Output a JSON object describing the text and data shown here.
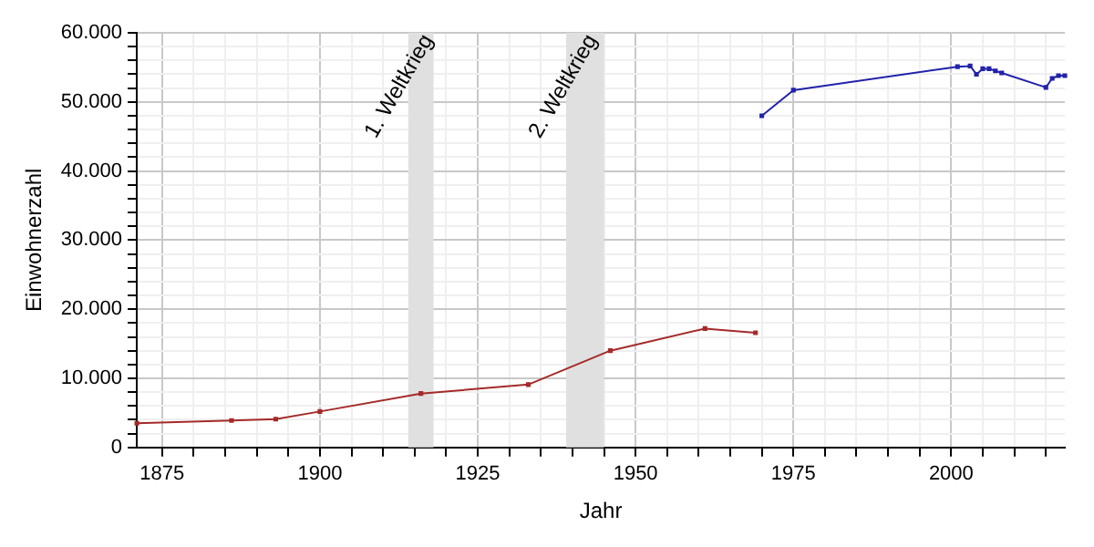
{
  "chart_data": {
    "type": "line",
    "xlabel": "Jahr",
    "ylabel": "Einwohnerzahl",
    "xlim": [
      1871,
      2018
    ],
    "xticks": [
      {
        "value": 1875,
        "label": "1875"
      },
      {
        "value": 1880,
        "label": null
      },
      {
        "value": 1885,
        "label": null
      },
      {
        "value": 1890,
        "label": null
      },
      {
        "value": 1895,
        "label": null
      },
      {
        "value": 1900,
        "label": "1900"
      },
      {
        "value": 1905,
        "label": null
      },
      {
        "value": 1910,
        "label": null
      },
      {
        "value": 1915,
        "label": null
      },
      {
        "value": 1920,
        "label": null
      },
      {
        "value": 1925,
        "label": "1925"
      },
      {
        "value": 1930,
        "label": null
      },
      {
        "value": 1935,
        "label": null
      },
      {
        "value": 1940,
        "label": null
      },
      {
        "value": 1945,
        "label": null
      },
      {
        "value": 1950,
        "label": "1950"
      },
      {
        "value": 1955,
        "label": null
      },
      {
        "value": 1960,
        "label": null
      },
      {
        "value": 1965,
        "label": null
      },
      {
        "value": 1970,
        "label": null
      },
      {
        "value": 1975,
        "label": "1975"
      },
      {
        "value": 1980,
        "label": null
      },
      {
        "value": 1985,
        "label": null
      },
      {
        "value": 1990,
        "label": null
      },
      {
        "value": 1995,
        "label": null
      },
      {
        "value": 2000,
        "label": "2000"
      },
      {
        "value": 2005,
        "label": null
      },
      {
        "value": 2010,
        "label": null
      },
      {
        "value": 2015,
        "label": null
      }
    ],
    "ylim": [
      0,
      60000
    ],
    "yticks": [
      {
        "value": 0,
        "label": "0"
      },
      {
        "value": 2000,
        "label": null
      },
      {
        "value": 4000,
        "label": null
      },
      {
        "value": 6000,
        "label": null
      },
      {
        "value": 8000,
        "label": null
      },
      {
        "value": 10000,
        "label": "10.000"
      },
      {
        "value": 12000,
        "label": null
      },
      {
        "value": 14000,
        "label": null
      },
      {
        "value": 16000,
        "label": null
      },
      {
        "value": 18000,
        "label": null
      },
      {
        "value": 20000,
        "label": "20.000"
      },
      {
        "value": 22000,
        "label": null
      },
      {
        "value": 24000,
        "label": null
      },
      {
        "value": 26000,
        "label": null
      },
      {
        "value": 28000,
        "label": null
      },
      {
        "value": 30000,
        "label": "30.000"
      },
      {
        "value": 32000,
        "label": null
      },
      {
        "value": 34000,
        "label": null
      },
      {
        "value": 36000,
        "label": null
      },
      {
        "value": 38000,
        "label": null
      },
      {
        "value": 40000,
        "label": "40.000"
      },
      {
        "value": 42000,
        "label": null
      },
      {
        "value": 44000,
        "label": null
      },
      {
        "value": 46000,
        "label": null
      },
      {
        "value": 48000,
        "label": null
      },
      {
        "value": 50000,
        "label": "50.000"
      },
      {
        "value": 52000,
        "label": null
      },
      {
        "value": 54000,
        "label": null
      },
      {
        "value": 56000,
        "label": null
      },
      {
        "value": 58000,
        "label": null
      },
      {
        "value": 60000,
        "label": "60.000"
      }
    ],
    "grid": true,
    "marker": "square",
    "line_style": "solid",
    "series": [
      {
        "color": "#a52a2a",
        "x": [
          1871,
          1886,
          1893,
          1900,
          1916,
          1933,
          1946,
          1961,
          1969
        ],
        "values": [
          3500,
          3900,
          4100,
          5200,
          7800,
          9100,
          14000,
          17200,
          16600
        ]
      },
      {
        "color": "#2222aa",
        "x": [
          1970,
          1975,
          2001,
          2003,
          2004,
          2005,
          2006,
          2007,
          2008,
          2015,
          2016,
          2017,
          2018
        ],
        "values": [
          48000,
          51700,
          55100,
          55200,
          54000,
          54800,
          54800,
          54500,
          54200,
          52100,
          53400,
          53800,
          53800
        ]
      }
    ],
    "bands": [
      {
        "axis": "x",
        "from": 1914,
        "to": 1918,
        "label": "1. Weltkrieg",
        "color": "#e0e0e0"
      },
      {
        "axis": "x",
        "from": 1939,
        "to": 1945,
        "label": "2. Weltkrieg",
        "color": "#e0e0e0"
      }
    ]
  }
}
